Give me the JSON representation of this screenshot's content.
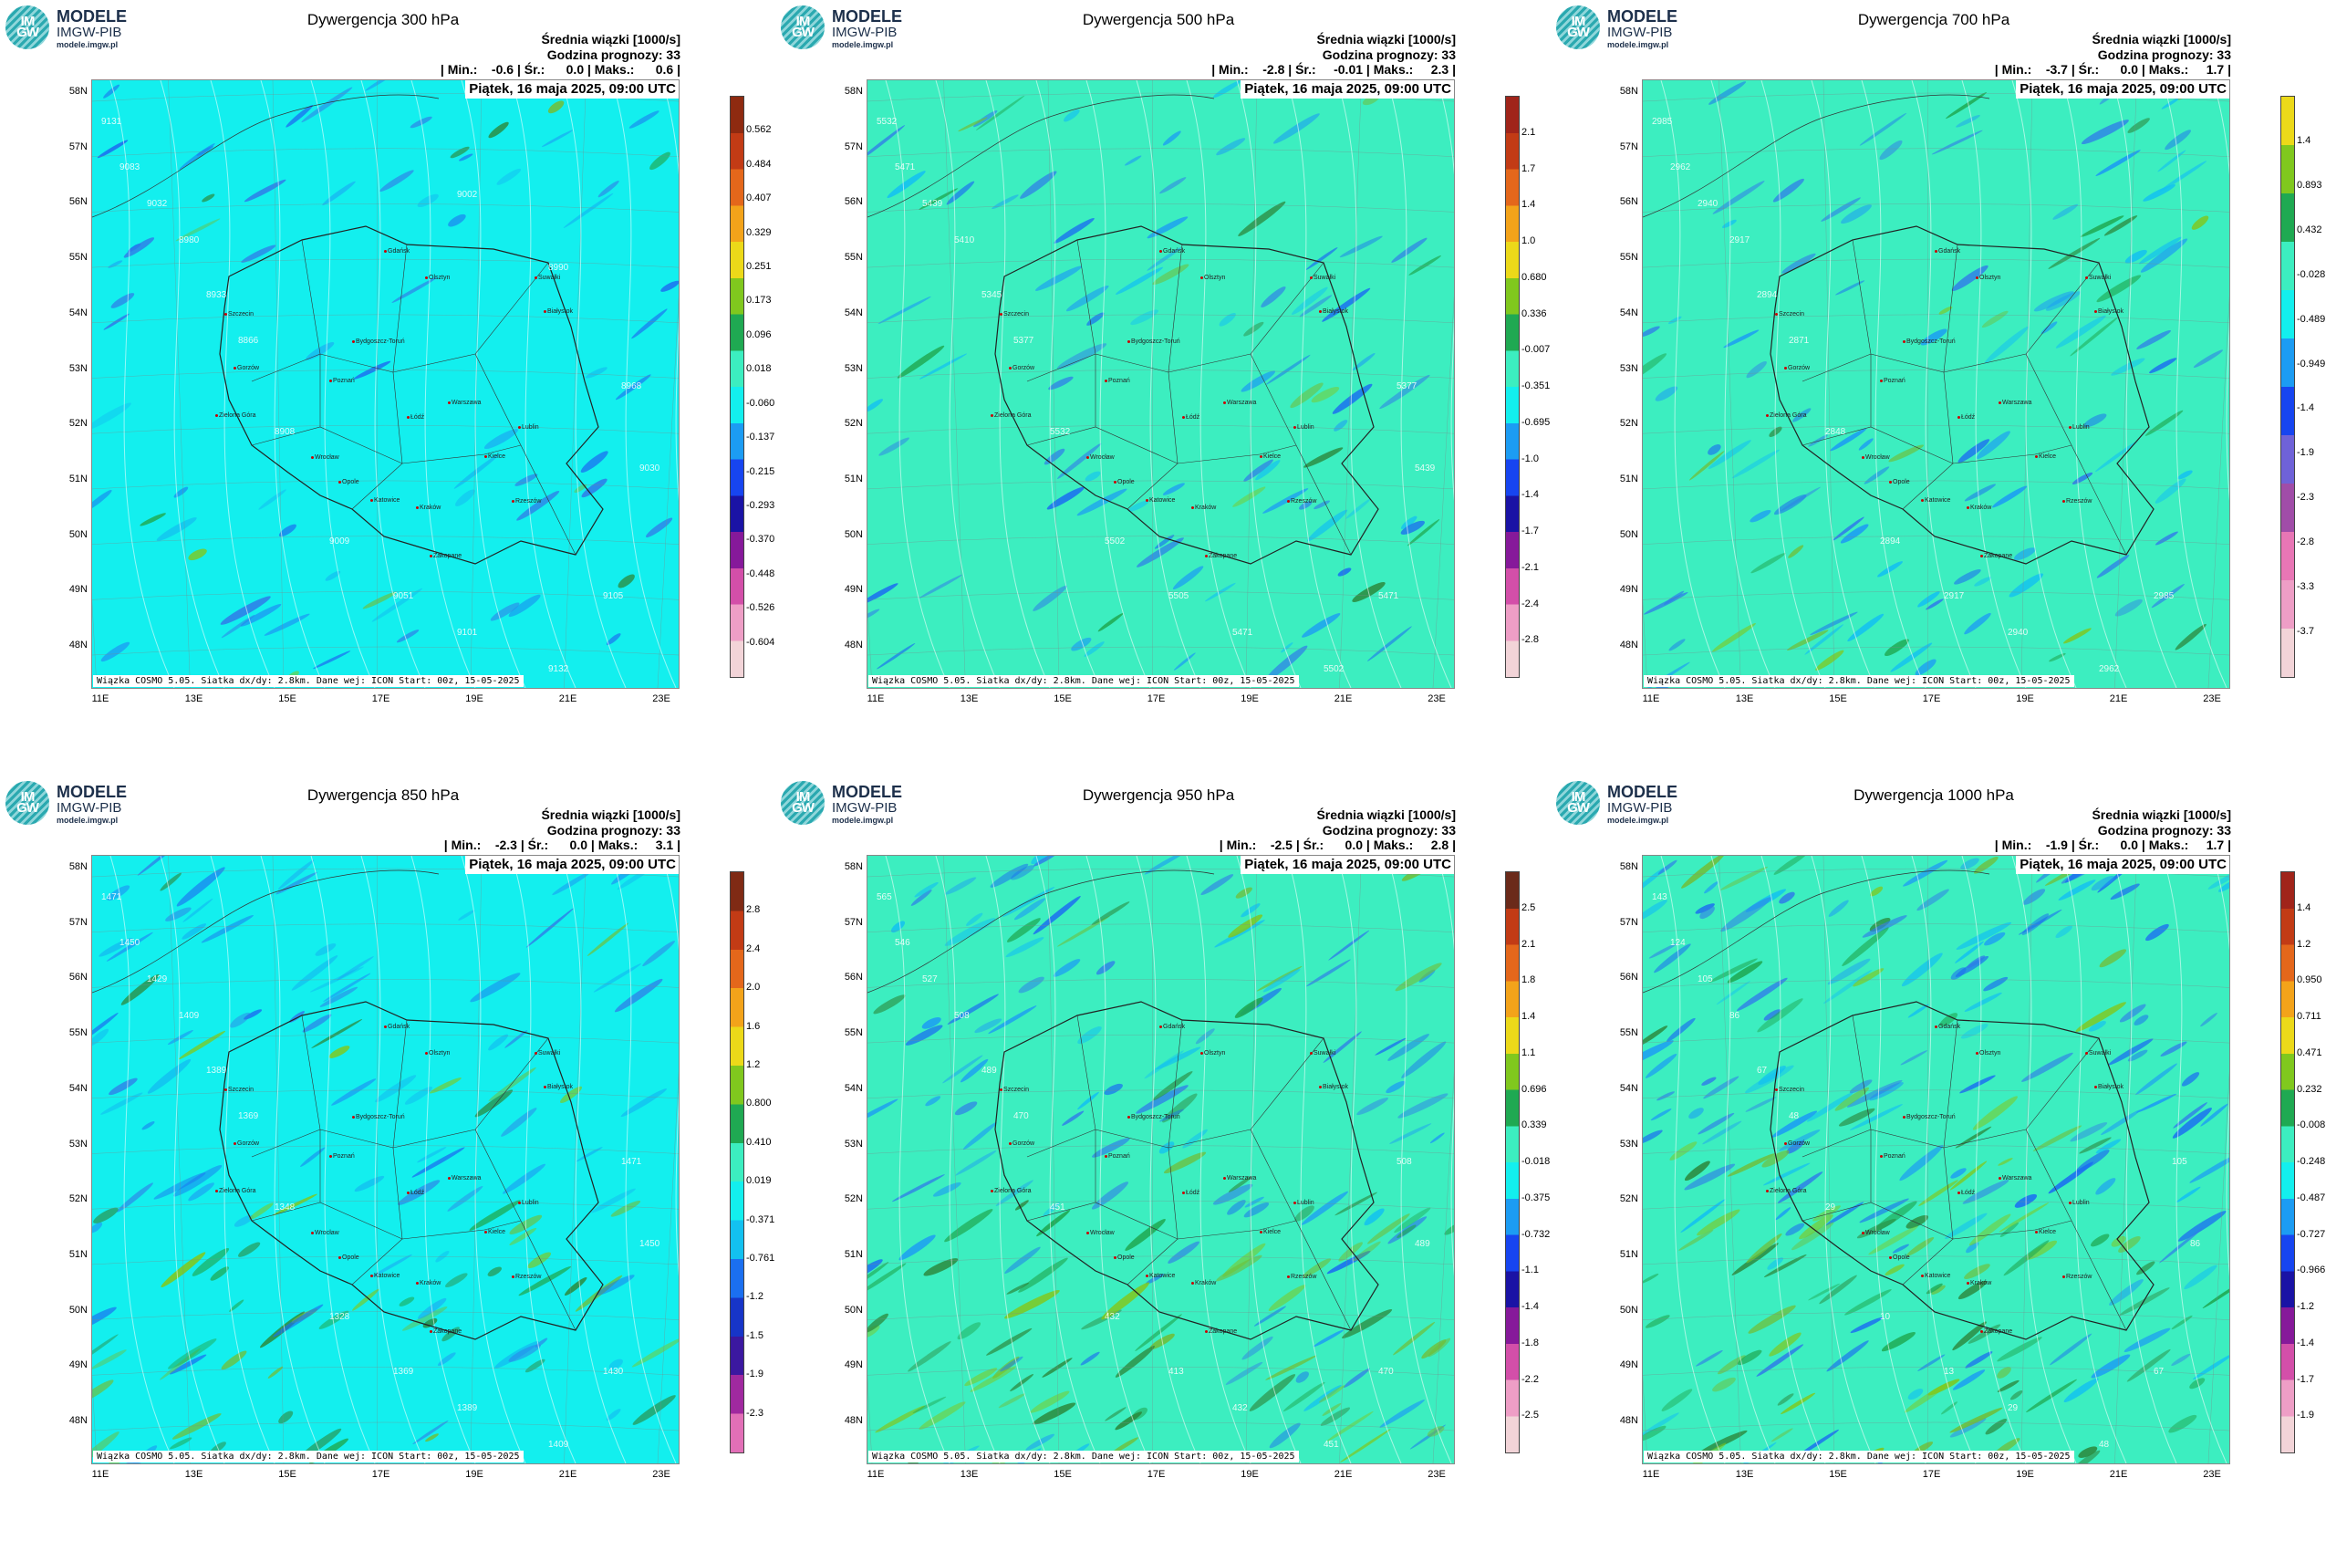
{
  "brand": {
    "mono": "IM GW",
    "title": "MODELE",
    "subtitle": "IMGW-PIB",
    "url": "modele.imgw.pl"
  },
  "header": {
    "line1": "Średnia wiązki [1000/s]",
    "line2": "Godzina prognozy: 33"
  },
  "date": "Piątek, 16 maja 2025, 09:00 UTC",
  "credit": "Wiązka COSMO 5.05. Siatka dx/dy: 2.8km. Dane wej: ICON Start: 00z, 15-05-2025",
  "lat_labels": [
    "58N",
    "57N",
    "56N",
    "55N",
    "54N",
    "53N",
    "52N",
    "51N",
    "50N",
    "49N",
    "48N"
  ],
  "lon_labels": [
    "11E",
    "13E",
    "15E",
    "17E",
    "19E",
    "21E",
    "23E"
  ],
  "cities": [
    "Gdańsk",
    "Olsztyn",
    "Suwałki",
    "Białystok",
    "Szczecin",
    "Bydgoszcz-Toruń",
    "Gorzów",
    "Poznań",
    "Warszawa",
    "Zielona Góra",
    "Łódź",
    "Lublin",
    "Wrocław",
    "Kielce",
    "Opole",
    "Katowice",
    "Kraków",
    "Rzeszów",
    "Zakopane"
  ],
  "panels": [
    {
      "title": "Dywergencja 300 hPa",
      "stats": "| Min.:    -0.6 | Śr.:      0.0 | Maks.:      0.6 |",
      "palette": "p300",
      "background": "#13efee",
      "ticks": [
        "0.562",
        "0.484",
        "0.407",
        "0.329",
        "0.251",
        "0.173",
        "0.096",
        "0.018",
        "-0.060",
        "-0.137",
        "-0.215",
        "-0.293",
        "-0.370",
        "-0.448",
        "-0.526",
        "-0.604"
      ],
      "iso": [
        "9131",
        "9083",
        "9032",
        "8980",
        "8933",
        "8866",
        "8908",
        "9009",
        "9051",
        "9101",
        "9132",
        "9105",
        "9030",
        "8968",
        "8990",
        "9002"
      ]
    },
    {
      "title": "Dywergencja 500 hPa",
      "stats": "| Min.:    -2.8 | Śr.:     -0.01 | Maks.:     2.3 |",
      "palette": "p500",
      "background": "#3ceec0",
      "ticks": [
        "2.1",
        "1.7",
        "1.4",
        "1.0",
        "0.680",
        "0.336",
        "-0.007",
        "-0.351",
        "-0.695",
        "-1.0",
        "-1.4",
        "-1.7",
        "-2.1",
        "-2.4",
        "-2.8"
      ],
      "iso": [
        "5532",
        "5471",
        "5439",
        "5410",
        "5345",
        "5377",
        "5532",
        "5502",
        "5505",
        "5471",
        "5502",
        "5471",
        "5439",
        "5377"
      ]
    },
    {
      "title": "Dywergencja 700 hPa",
      "stats": "| Min.:    -3.7 | Śr.:      0.0 | Maks.:     1.7 |",
      "palette": "p700",
      "background": "#3ceec0",
      "ticks": [
        "1.4",
        "0.893",
        "0.432",
        "-0.028",
        "-0.489",
        "-0.949",
        "-1.4",
        "-1.9",
        "-2.3",
        "-2.8",
        "-3.3",
        "-3.7"
      ],
      "iso": [
        "2985",
        "2962",
        "2940",
        "2917",
        "2894",
        "2871",
        "2848",
        "2894",
        "2917",
        "2940",
        "2962",
        "2985"
      ]
    },
    {
      "title": "Dywergencja 850 hPa",
      "stats": "| Min.:    -2.3 | Śr.:      0.0 | Maks.:     3.1 |",
      "palette": "p850",
      "background": "#13efee",
      "ticks": [
        "2.8",
        "2.4",
        "2.0",
        "1.6",
        "1.2",
        "0.800",
        "0.410",
        "0.019",
        "-0.371",
        "-0.761",
        "-1.2",
        "-1.5",
        "-1.9",
        "-2.3"
      ],
      "iso": [
        "1471",
        "1450",
        "1429",
        "1409",
        "1389",
        "1369",
        "1348",
        "1328",
        "1369",
        "1389",
        "1409",
        "1430",
        "1450",
        "1471"
      ]
    },
    {
      "title": "Dywergencja 950 hPa",
      "stats": "| Min.:    -2.5 | Śr.:      0.0 | Maks.:     2.8 |",
      "palette": "p950",
      "background": "#3ceec0",
      "ticks": [
        "2.5",
        "2.1",
        "1.8",
        "1.4",
        "1.1",
        "0.696",
        "0.339",
        "-0.018",
        "-0.375",
        "-0.732",
        "-1.1",
        "-1.4",
        "-1.8",
        "-2.2",
        "-2.5"
      ],
      "iso": [
        "565",
        "546",
        "527",
        "508",
        "489",
        "470",
        "451",
        "432",
        "413",
        "432",
        "451",
        "470",
        "489",
        "508"
      ]
    },
    {
      "title": "Dywergencja 1000 hPa",
      "stats": "| Min.:    -1.9 | Śr.:      0.0 | Maks.:     1.7 |",
      "palette": "p1000",
      "background": "#3ceec0",
      "ticks": [
        "1.4",
        "1.2",
        "0.950",
        "0.711",
        "0.471",
        "0.232",
        "-0.008",
        "-0.248",
        "-0.487",
        "-0.727",
        "-0.966",
        "-1.2",
        "-1.4",
        "-1.7",
        "-1.9"
      ],
      "iso": [
        "143",
        "124",
        "105",
        "86",
        "67",
        "48",
        "29",
        "10",
        "13",
        "29",
        "48",
        "67",
        "86",
        "105"
      ]
    }
  ]
}
